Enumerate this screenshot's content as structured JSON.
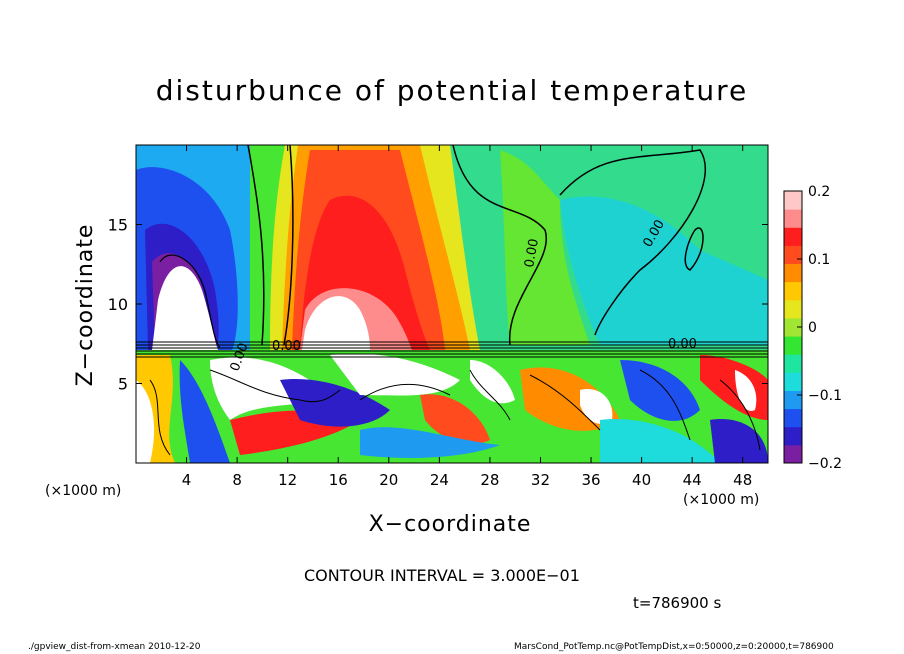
{
  "chart_data": {
    "type": "heatmap",
    "title": "disturbunce of potential temperature",
    "xlabel": "X−coordinate",
    "ylabel": "Z−coordinate",
    "x_unit": "(×1000 m)",
    "xlim": [
      0,
      50
    ],
    "ylim": [
      0,
      20
    ],
    "x_ticks": [
      4,
      8,
      12,
      16,
      20,
      24,
      28,
      32,
      36,
      40,
      44,
      48
    ],
    "y_ticks": [
      5,
      10,
      15
    ],
    "colorbar": {
      "range": [
        -0.2,
        0.2
      ],
      "tick_labels": [
        "0.2",
        "0.1",
        "0",
        "−0.1",
        "−0.2"
      ],
      "tick_values": [
        0.2,
        0.1,
        0,
        -0.1,
        -0.2
      ],
      "colors": [
        "#7b1fa2",
        "#2d1ec8",
        "#1e50f0",
        "#1e9bf0",
        "#1edcdc",
        "#1ee6a0",
        "#32e632",
        "#a0e632",
        "#e6e61e",
        "#ffc800",
        "#ff8c00",
        "#ff4b1e",
        "#ff1e1e",
        "#ff8c8c",
        "#ffc8c8"
      ]
    },
    "contour_labels": [
      "0.00",
      "0.00",
      "0.00",
      "0.00",
      "0.00"
    ],
    "grid": false
  },
  "annotations": {
    "contour_interval": "CONTOUR INTERVAL = 3.000E−01",
    "time": "t=786900  s",
    "footer_left": "./gpview_dist-from-xmean  2010-12-20",
    "footer_right": "MarsCond_PotTemp.nc@PotTempDist,x=0:50000,z=0:20000,t=786900"
  }
}
